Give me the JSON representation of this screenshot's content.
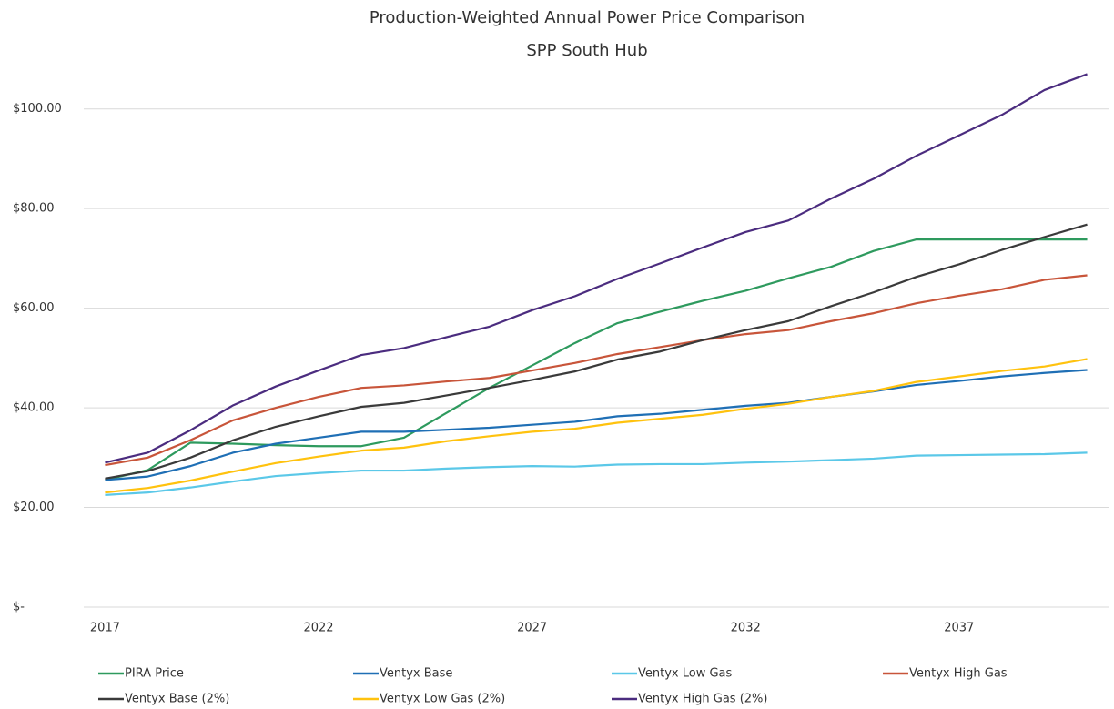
{
  "chart_data": {
    "type": "line",
    "title": "Production-Weighted Annual Power Price Comparison",
    "subtitle": "SPP South Hub",
    "x": [
      2017,
      2018,
      2019,
      2020,
      2021,
      2022,
      2023,
      2024,
      2025,
      2026,
      2027,
      2028,
      2029,
      2030,
      2031,
      2032,
      2033,
      2034,
      2035,
      2036,
      2037,
      2038,
      2039,
      2040
    ],
    "xlim": [
      2016.5,
      2040.5
    ],
    "xticks": [
      2017,
      2022,
      2027,
      2032,
      2037
    ],
    "ylim": [
      0,
      110
    ],
    "yticks": [
      {
        "value": 0,
        "label": "$-"
      },
      {
        "value": 20,
        "label": "$20.00"
      },
      {
        "value": 40,
        "label": "$40.00"
      },
      {
        "value": 60,
        "label": "$60.00"
      },
      {
        "value": 80,
        "label": "$80.00"
      },
      {
        "value": 100,
        "label": "$100.00"
      }
    ],
    "grid": true,
    "legend": "bottom",
    "series": [
      {
        "name": "PIRA Price",
        "color": "#2e9a5e",
        "values": [
          25.5,
          27.5,
          33,
          32.8,
          32.5,
          32.3,
          32.3,
          34,
          39,
          44,
          48.5,
          53,
          57,
          59.3,
          61.5,
          63.5,
          66,
          68.3,
          71.5,
          73.8,
          73.8,
          73.8,
          73.8,
          73.8
        ]
      },
      {
        "name": "Ventyx Base",
        "color": "#1f6fb5",
        "values": [
          25.5,
          26.2,
          28.3,
          31,
          32.8,
          34,
          35.2,
          35.2,
          35.6,
          36,
          36.6,
          37.2,
          38.3,
          38.8,
          39.6,
          40.4,
          41,
          42.2,
          43.3,
          44.6,
          45.4,
          46.3,
          47,
          47.6
        ]
      },
      {
        "name": "Ventyx Low Gas",
        "color": "#5bc8e8",
        "values": [
          22.5,
          23,
          24,
          25.2,
          26.3,
          26.9,
          27.4,
          27.4,
          27.8,
          28.1,
          28.3,
          28.2,
          28.6,
          28.7,
          28.7,
          29,
          29.2,
          29.5,
          29.8,
          30.4,
          30.5,
          30.6,
          30.7,
          31
        ]
      },
      {
        "name": "Ventyx High Gas",
        "color": "#c8553a",
        "values": [
          28.5,
          30,
          33.5,
          37.5,
          40,
          42.2,
          44,
          44.5,
          45.3,
          46,
          47.5,
          49,
          50.8,
          52.2,
          53.6,
          54.8,
          55.6,
          57.4,
          59,
          61,
          62.5,
          63.8,
          65.7,
          66.6
        ]
      },
      {
        "name": "Ventyx Base (2%)",
        "color": "#3a3a3a",
        "values": [
          25.8,
          27.3,
          30,
          33.5,
          36.2,
          38.3,
          40.2,
          41,
          42.5,
          44,
          45.6,
          47.3,
          49.7,
          51.3,
          53.6,
          55.6,
          57.4,
          60.4,
          63.2,
          66.3,
          68.8,
          71.7,
          74.3,
          76.8
        ]
      },
      {
        "name": "Ventyx Low Gas (2%)",
        "color": "#ffc20e",
        "values": [
          23,
          23.9,
          25.4,
          27.2,
          28.9,
          30.2,
          31.4,
          32,
          33.3,
          34.3,
          35.2,
          35.8,
          37,
          37.8,
          38.6,
          39.8,
          40.8,
          42.2,
          43.4,
          45.2,
          46.3,
          47.4,
          48.3,
          49.8
        ]
      },
      {
        "name": "Ventyx High Gas (2%)",
        "color": "#4b2c7f",
        "values": [
          29,
          31,
          35.5,
          40.5,
          44.3,
          47.5,
          50.6,
          52,
          54.2,
          56.3,
          59.6,
          62.4,
          65.9,
          69,
          72.2,
          75.3,
          77.6,
          82,
          86,
          90.6,
          94.7,
          98.8,
          103.8,
          107
        ]
      }
    ]
  }
}
